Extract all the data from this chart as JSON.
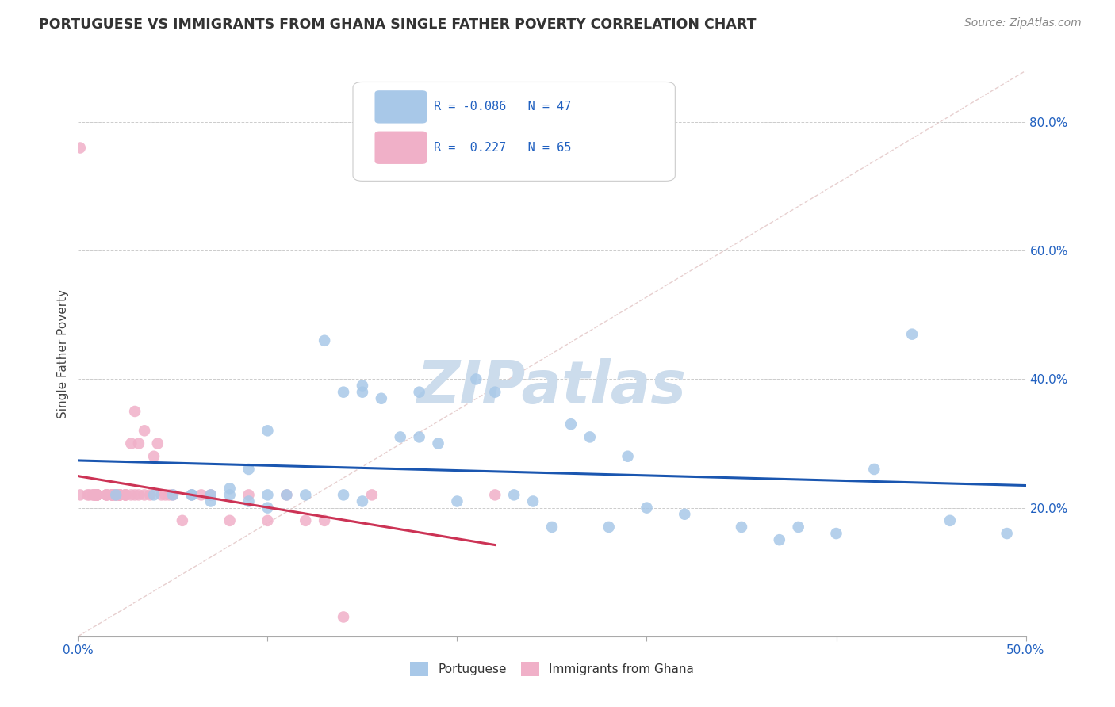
{
  "title": "PORTUGUESE VS IMMIGRANTS FROM GHANA SINGLE FATHER POVERTY CORRELATION CHART",
  "source": "Source: ZipAtlas.com",
  "ylabel": "Single Father Poverty",
  "xlim": [
    0.0,
    0.5
  ],
  "ylim": [
    0.0,
    0.88
  ],
  "y_ticks_right": [
    0.2,
    0.4,
    0.6,
    0.8
  ],
  "y_tick_labels_right": [
    "20.0%",
    "40.0%",
    "60.0%",
    "80.0%"
  ],
  "r_portuguese": -0.086,
  "n_portuguese": 47,
  "r_ghana": 0.227,
  "n_ghana": 65,
  "color_portuguese": "#a8c8e8",
  "color_ghana": "#f0b0c8",
  "line_color_portuguese": "#1a56b0",
  "line_color_ghana": "#cc3355",
  "watermark": "ZIPatlas",
  "watermark_color": "#ccdcec",
  "portuguese_x": [
    0.02,
    0.04,
    0.05,
    0.06,
    0.06,
    0.07,
    0.07,
    0.08,
    0.08,
    0.09,
    0.09,
    0.1,
    0.1,
    0.1,
    0.11,
    0.12,
    0.13,
    0.14,
    0.14,
    0.15,
    0.15,
    0.15,
    0.16,
    0.17,
    0.18,
    0.18,
    0.19,
    0.2,
    0.21,
    0.22,
    0.23,
    0.24,
    0.25,
    0.26,
    0.27,
    0.28,
    0.29,
    0.3,
    0.32,
    0.35,
    0.37,
    0.38,
    0.4,
    0.42,
    0.44,
    0.46,
    0.49
  ],
  "portuguese_y": [
    0.22,
    0.22,
    0.22,
    0.22,
    0.22,
    0.21,
    0.22,
    0.22,
    0.23,
    0.21,
    0.26,
    0.2,
    0.22,
    0.32,
    0.22,
    0.22,
    0.46,
    0.38,
    0.22,
    0.21,
    0.38,
    0.39,
    0.37,
    0.31,
    0.31,
    0.38,
    0.3,
    0.21,
    0.4,
    0.38,
    0.22,
    0.21,
    0.17,
    0.33,
    0.31,
    0.17,
    0.28,
    0.2,
    0.19,
    0.17,
    0.15,
    0.17,
    0.16,
    0.26,
    0.47,
    0.18,
    0.16
  ],
  "ghana_x": [
    0.001,
    0.001,
    0.005,
    0.006,
    0.008,
    0.008,
    0.009,
    0.009,
    0.01,
    0.01,
    0.01,
    0.01,
    0.01,
    0.01,
    0.01,
    0.015,
    0.015,
    0.015,
    0.015,
    0.018,
    0.018,
    0.018,
    0.018,
    0.018,
    0.02,
    0.02,
    0.02,
    0.02,
    0.022,
    0.022,
    0.022,
    0.022,
    0.022,
    0.025,
    0.025,
    0.025,
    0.025,
    0.028,
    0.028,
    0.03,
    0.03,
    0.032,
    0.032,
    0.035,
    0.035,
    0.038,
    0.04,
    0.042,
    0.044,
    0.046,
    0.048,
    0.05,
    0.055,
    0.06,
    0.065,
    0.07,
    0.08,
    0.09,
    0.1,
    0.11,
    0.12,
    0.13,
    0.14,
    0.155,
    0.22
  ],
  "ghana_y": [
    0.76,
    0.22,
    0.22,
    0.22,
    0.22,
    0.22,
    0.22,
    0.22,
    0.22,
    0.22,
    0.22,
    0.22,
    0.22,
    0.22,
    0.22,
    0.22,
    0.22,
    0.22,
    0.22,
    0.22,
    0.22,
    0.22,
    0.22,
    0.22,
    0.22,
    0.22,
    0.22,
    0.22,
    0.22,
    0.22,
    0.22,
    0.22,
    0.22,
    0.22,
    0.22,
    0.22,
    0.22,
    0.22,
    0.3,
    0.22,
    0.35,
    0.22,
    0.3,
    0.22,
    0.32,
    0.22,
    0.28,
    0.3,
    0.22,
    0.22,
    0.22,
    0.22,
    0.18,
    0.22,
    0.22,
    0.22,
    0.18,
    0.22,
    0.18,
    0.22,
    0.18,
    0.18,
    0.03,
    0.22,
    0.22
  ]
}
